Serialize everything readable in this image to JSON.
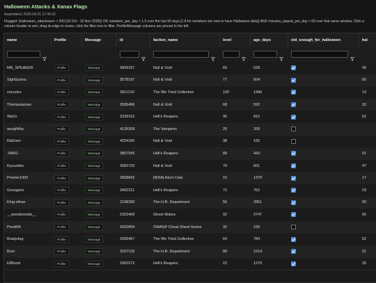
{
  "header": {
    "title": "Halloween Attacks & Xanax Flags",
    "assembled": "Assembled: 2026-09-21 17:45:32",
    "description": "Flagged: (halloween_attackswon > 200 [18 Oct - 15 Nov 2025]) OR xantaken_per_day > 1.5 over the last 90 days [1.8 for members too new to have Halloween data]) AND minutes_played_per_day > 60 over that same window. Click a column header to sort, drag its edge to resize, click the filter icon to filter. Profile/Message columns are pinned to the left."
  },
  "table": {
    "columns": [
      "name",
      "Profile",
      "Message",
      "id",
      "faction_name",
      "level",
      "age_days",
      "old_enough_for_halloween",
      "hal"
    ],
    "buttons": {
      "profile": "Profile",
      "message": "Message"
    },
    "rows": [
      [
        "MR_SPEAKER",
        3893337,
        "Null & Void",
        69,
        528,
        true,
        "49"
      ],
      [
        "SighGunna",
        3578197,
        "Null & Void",
        77,
        604,
        true,
        "65"
      ],
      [
        "zercules",
        2811216,
        "The We Tried Collective",
        100,
        1496,
        true,
        "13"
      ],
      [
        "Themastaman",
        3595496,
        "Null & Void",
        68,
        592,
        true,
        "32"
      ],
      [
        "WaXx",
        3339152,
        "Hell's Reapers",
        90,
        815,
        true,
        "52"
      ],
      [
        "aunglhlha",
        4135308,
        "The Vampires",
        25,
        209,
        false,
        null
      ],
      [
        "RatUser",
        4254180,
        "Null & Void",
        38,
        155,
        false,
        null
      ],
      [
        "-NWO-",
        3857945,
        "Hell's Reapers",
        89,
        443,
        true,
        "51"
      ],
      [
        "Kyuumiko",
        3582720,
        "Null & Void",
        79,
        601,
        true,
        "47"
      ],
      [
        "Promer1000",
        2858842,
        "[WSA] Atom Cats",
        15,
        1379,
        true,
        "17"
      ],
      [
        "Greegann",
        3402211,
        "Hell's Reapers",
        72,
        752,
        true,
        "23"
      ],
      [
        "King-ethan",
        2198280,
        "The H.R. Department",
        56,
        2851,
        true,
        "50"
      ],
      [
        "__woodenickle__",
        2263400,
        "Ghost Riders",
        92,
        2747,
        true,
        "65"
      ],
      [
        "PivotRA",
        4252894,
        "OWASP Cheat Sheet Series",
        32,
        156,
        false,
        null
      ],
      [
        "Bradydog",
        3369467,
        "The We Tried Collective",
        64,
        784,
        true,
        "52"
      ],
      [
        "Bum",
        3167118,
        "The H.R. Department",
        89,
        1014,
        true,
        "51"
      ],
      [
        "ElBlond",
        2902272,
        "Hell's Reapers",
        22,
        1270,
        true,
        "25"
      ]
    ]
  }
}
